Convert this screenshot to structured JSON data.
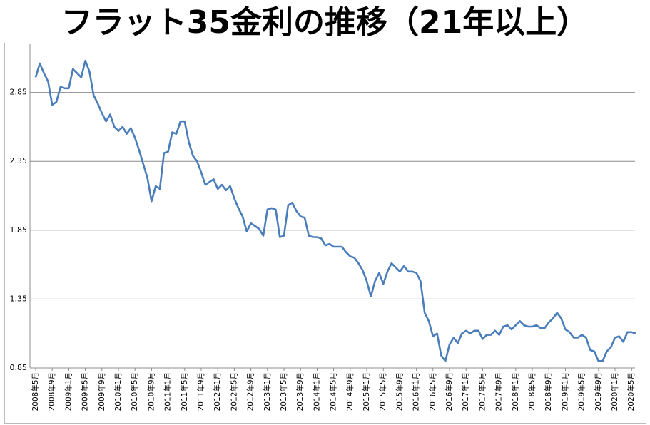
{
  "chart_data": {
    "type": "line",
    "title": "フラット35金利の推移（21年以上）",
    "categories": [
      "2008年5月",
      null,
      null,
      null,
      "2008年9月",
      null,
      null,
      null,
      "2009年1月",
      null,
      null,
      null,
      "2009年5月",
      null,
      null,
      null,
      "2009年9月",
      null,
      null,
      null,
      "2010年1月",
      null,
      null,
      null,
      "2010年5月",
      null,
      null,
      null,
      "2010年9月",
      null,
      null,
      null,
      "2011年1月",
      null,
      null,
      null,
      "2011年5月",
      null,
      null,
      null,
      "2011年9月",
      null,
      null,
      null,
      "2012年1月",
      null,
      null,
      null,
      "2012年5月",
      null,
      null,
      null,
      "2012年9月",
      null,
      null,
      null,
      "2013年1月",
      null,
      null,
      null,
      "2013年5月",
      null,
      null,
      null,
      "2013年9月",
      null,
      null,
      null,
      "2014年1月",
      null,
      null,
      null,
      "2014年5月",
      null,
      null,
      null,
      "2014年9月",
      null,
      null,
      null,
      "2015年1月",
      null,
      null,
      null,
      "2015年5月",
      null,
      null,
      null,
      "2015年9月",
      null,
      null,
      null,
      "2016年1月",
      null,
      null,
      null,
      "2016年5月",
      null,
      null,
      null,
      "2016年9月",
      null,
      null,
      null,
      "2017年1月",
      null,
      null,
      null,
      "2017年5月",
      null,
      null,
      null,
      "2017年9月",
      null,
      null,
      null,
      "2018年1月",
      null,
      null,
      null,
      "2018年5月",
      null,
      null,
      null,
      "2018年9月",
      null,
      null,
      null,
      "2019年1月",
      null,
      null,
      null,
      "2019年5月",
      null,
      null,
      null,
      "2019年9月",
      null,
      null,
      null,
      "2020年1月",
      null,
      null,
      null,
      "2020年5月",
      null
    ],
    "values": [
      2.96,
      3.06,
      2.99,
      2.93,
      2.76,
      2.78,
      2.89,
      2.88,
      2.88,
      3.02,
      2.99,
      2.96,
      3.08,
      3.0,
      2.83,
      2.77,
      2.7,
      2.64,
      2.69,
      2.6,
      2.57,
      2.6,
      2.55,
      2.59,
      2.52,
      2.43,
      2.33,
      2.23,
      2.06,
      2.17,
      2.15,
      2.41,
      2.42,
      2.56,
      2.55,
      2.64,
      2.64,
      2.49,
      2.39,
      2.35,
      2.27,
      2.18,
      2.2,
      2.22,
      2.15,
      2.18,
      2.14,
      2.17,
      2.08,
      2.01,
      1.95,
      1.84,
      1.9,
      1.88,
      1.86,
      1.81,
      2.0,
      2.01,
      2.0,
      1.8,
      1.81,
      2.03,
      2.05,
      1.99,
      1.95,
      1.94,
      1.81,
      1.8,
      1.8,
      1.79,
      1.74,
      1.75,
      1.73,
      1.73,
      1.73,
      1.69,
      1.66,
      1.65,
      1.61,
      1.56,
      1.48,
      1.37,
      1.48,
      1.54,
      1.46,
      1.55,
      1.61,
      1.58,
      1.55,
      1.59,
      1.55,
      1.55,
      1.54,
      1.48,
      1.25,
      1.19,
      1.08,
      1.1,
      0.94,
      0.9,
      1.02,
      1.07,
      1.03,
      1.1,
      1.12,
      1.1,
      1.12,
      1.12,
      1.06,
      1.09,
      1.09,
      1.12,
      1.09,
      1.15,
      1.16,
      1.13,
      1.16,
      1.19,
      1.16,
      1.15,
      1.15,
      1.16,
      1.14,
      1.14,
      1.18,
      1.21,
      1.25,
      1.21,
      1.13,
      1.11,
      1.07,
      1.07,
      1.09,
      1.07,
      0.98,
      0.97,
      0.9,
      0.9,
      0.97,
      1.0,
      1.07,
      1.08,
      1.04,
      1.11,
      1.11,
      1.1
    ],
    "color": "#4a7ebb",
    "ylim": [
      0.85,
      3.2
    ],
    "yticks": [
      0.85,
      1.35,
      1.85,
      2.35,
      2.85
    ],
    "grid": true
  }
}
